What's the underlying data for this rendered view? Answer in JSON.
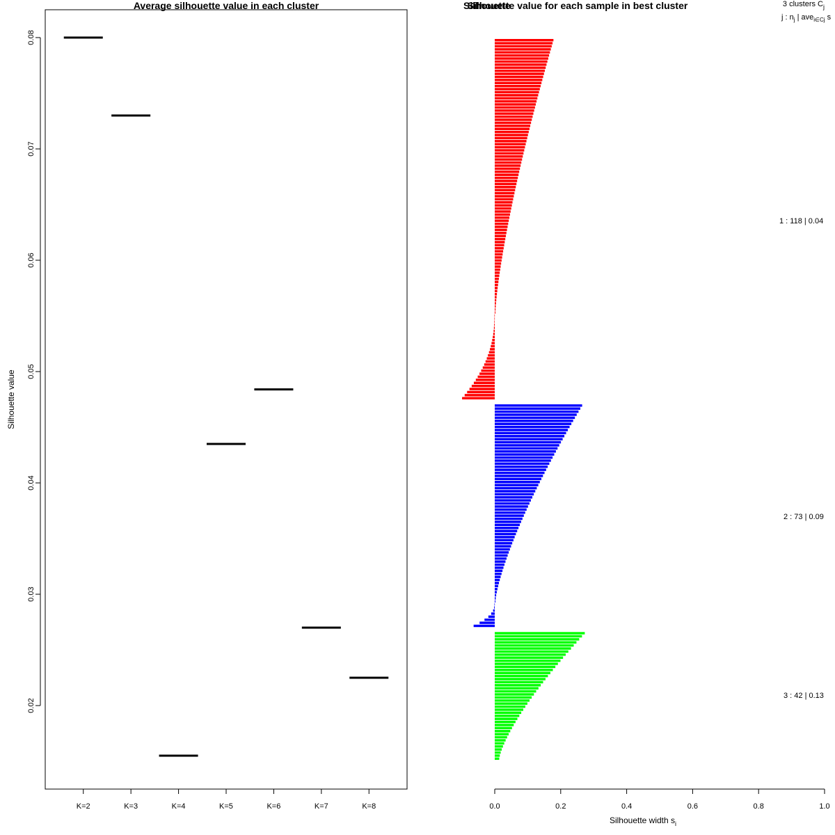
{
  "chart_data": [
    {
      "type": "line",
      "title": "Average silhouette value in each cluster",
      "xlabel": "",
      "ylabel": "Silhouette value",
      "categories": [
        "K=2",
        "K=3",
        "K=4",
        "K=5",
        "K=6",
        "K=7",
        "K=8"
      ],
      "values": [
        0.08,
        0.073,
        0.0155,
        0.0435,
        0.0484,
        0.027,
        0.0225
      ],
      "ylim": [
        0.0125,
        0.0825
      ],
      "yticks": [
        0.02,
        0.03,
        0.04,
        0.05,
        0.06,
        0.07,
        0.08
      ],
      "ytick_labels": [
        "0.02",
        "0.03",
        "0.04",
        "0.05",
        "0.06",
        "0.07",
        "0.08"
      ],
      "grid": false,
      "legend": "none"
    },
    {
      "type": "bar",
      "orientation": "horizontal",
      "title": "Silhouette value for each sample in best cluster",
      "overlapping_title": "Silhouette",
      "xlabel": "Silhouette width s",
      "xlabel_subscript": "i",
      "xlim": [
        0.0,
        1.0
      ],
      "xticks": [
        0.0,
        0.2,
        0.4,
        0.6,
        0.8,
        1.0
      ],
      "xtick_labels": [
        "0.0",
        "0.2",
        "0.4",
        "0.6",
        "0.8",
        "1.0"
      ],
      "grid": false,
      "legend": "right",
      "legend_header": {
        "line1": "3  clusters  C",
        "line1_sub": "j",
        "line2": "j :  n",
        "line2_sub1": "j",
        "line2_mid": " | ave",
        "line2_sub2": "i∈Cj",
        "line2_tail": "  s"
      },
      "series": [
        {
          "name": "1 :  118  |  0.04",
          "cluster": 1,
          "n": 118,
          "color": "#ff0000",
          "max": 0.178,
          "min": -0.098,
          "n_negative": 28
        },
        {
          "name": "2 :  73  |  0.09",
          "cluster": 2,
          "n": 73,
          "color": "#0000ff",
          "max": 0.265,
          "min": -0.063,
          "n_negative": 8
        },
        {
          "name": "3 :  42  |  0.13",
          "cluster": 3,
          "n": 42,
          "color": "#00ff00",
          "max": 0.273,
          "min": 0.015,
          "n_negative": 0
        }
      ]
    }
  ]
}
